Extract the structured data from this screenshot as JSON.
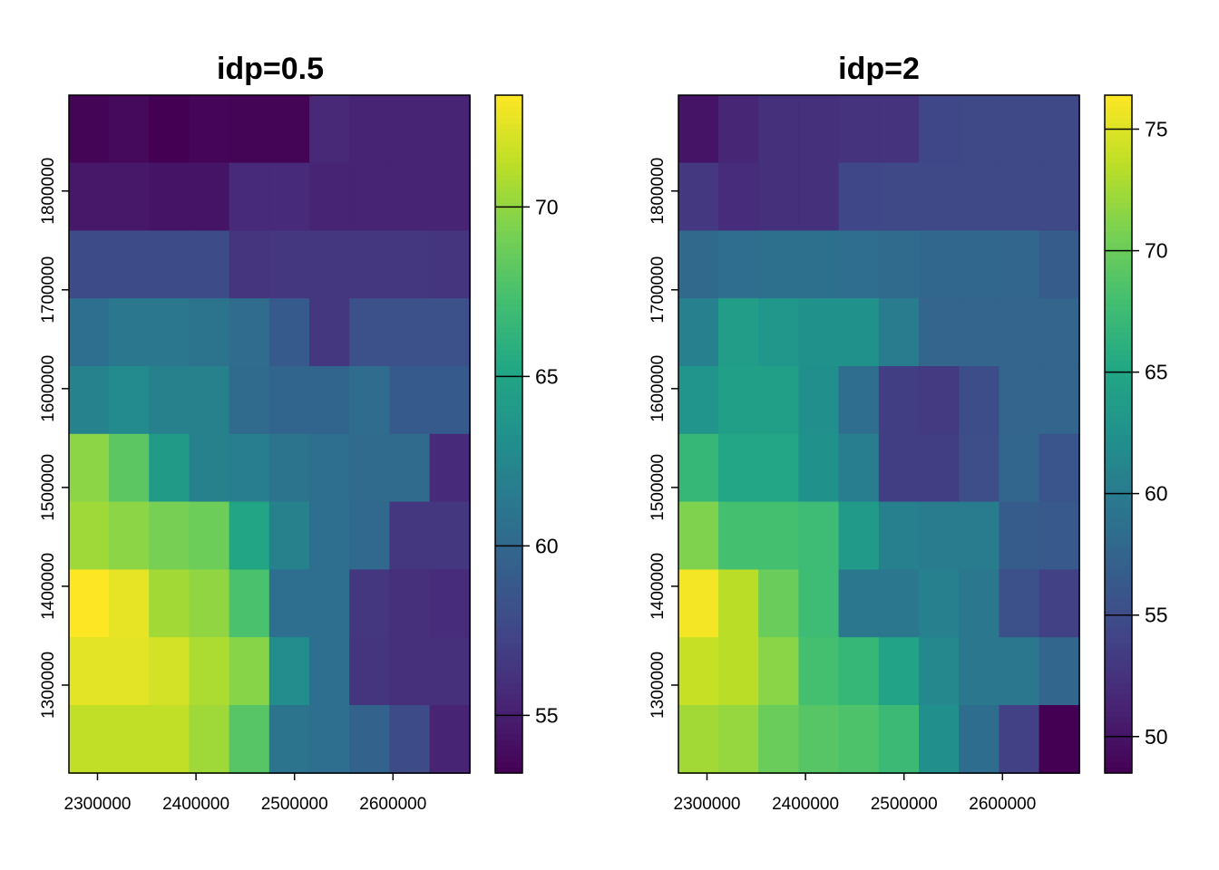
{
  "chart_data": [
    {
      "type": "heatmap",
      "title": "idp=0.5",
      "xlabel": "",
      "ylabel": "",
      "x_ticks": [
        2300000,
        2400000,
        2500000,
        2600000
      ],
      "x_tick_labels": [
        "2300000",
        "2400000",
        "2500000",
        "2600000"
      ],
      "y_ticks": [
        1300000,
        1400000,
        1500000,
        1600000,
        1700000,
        1800000
      ],
      "y_tick_labels": [
        "1300000",
        "1400000",
        "1500000",
        "1600000",
        "1700000",
        "1800000"
      ],
      "xlim": [
        2271000,
        2678000
      ],
      "ylim": [
        1211000,
        1897000
      ],
      "grid": {
        "x0": 2271000,
        "dx": 40700,
        "ncols": 10,
        "ytop": 1897000,
        "dy": 68600,
        "nrows": 10
      },
      "values": [
        [
          53.5,
          53.8,
          53.3,
          53.6,
          53.5,
          53.5,
          55.6,
          55.3,
          55.3,
          55.3
        ],
        [
          54.6,
          54.6,
          54.4,
          54.4,
          55.7,
          55.7,
          55.3,
          55.3,
          55.3,
          55.3
        ],
        [
          57.8,
          57.8,
          57.8,
          57.8,
          56.3,
          56.5,
          56.5,
          56.5,
          56.5,
          56.3
        ],
        [
          60.5,
          61.2,
          61.2,
          61.0,
          60.3,
          58.9,
          56.5,
          58.2,
          58.2,
          58.2
        ],
        [
          62.2,
          62.8,
          62.0,
          62.0,
          60.2,
          59.8,
          59.8,
          60.3,
          58.9,
          58.9
        ],
        [
          69.8,
          68.2,
          64.2,
          62.0,
          61.8,
          61.0,
          60.5,
          60.2,
          60.2,
          55.7
        ],
        [
          70.4,
          69.8,
          69.2,
          68.8,
          65.0,
          62.0,
          60.5,
          60.0,
          56.5,
          56.5
        ],
        [
          73.3,
          72.6,
          70.5,
          70.0,
          67.5,
          60.5,
          60.5,
          56.5,
          56.0,
          55.8
        ],
        [
          72.5,
          72.5,
          72.0,
          70.8,
          69.7,
          63.0,
          60.5,
          56.3,
          56.0,
          56.0
        ],
        [
          71.4,
          71.4,
          71.4,
          70.4,
          68.0,
          60.9,
          60.5,
          59.6,
          57.8,
          55.3
        ]
      ],
      "colorbar": {
        "min": 53.3,
        "max": 73.3,
        "ticks": [
          55,
          60,
          65,
          70
        ],
        "tick_labels": [
          "55",
          "60",
          "65",
          "70"
        ]
      }
    },
    {
      "type": "heatmap",
      "title": "idp=2",
      "xlabel": "",
      "ylabel": "",
      "x_ticks": [
        2300000,
        2400000,
        2500000,
        2600000
      ],
      "x_tick_labels": [
        "2300000",
        "2400000",
        "2500000",
        "2600000"
      ],
      "y_ticks": [
        1300000,
        1400000,
        1500000,
        1600000,
        1700000,
        1800000
      ],
      "y_tick_labels": [
        "1300000",
        "1400000",
        "1500000",
        "1600000",
        "1700000",
        "1800000"
      ],
      "xlim": [
        2271000,
        2678000
      ],
      "ylim": [
        1211000,
        1897000
      ],
      "grid": {
        "x0": 2271000,
        "dx": 40700,
        "ncols": 10,
        "ytop": 1897000,
        "dy": 68600,
        "nrows": 10
      },
      "values": [
        [
          50.0,
          51.5,
          52.3,
          52.3,
          52.6,
          52.6,
          54.4,
          54.6,
          54.6,
          54.6
        ],
        [
          53.0,
          52.0,
          52.3,
          52.3,
          54.4,
          54.6,
          54.6,
          54.6,
          54.6,
          54.6
        ],
        [
          58.0,
          58.5,
          58.8,
          58.8,
          58.5,
          58.1,
          57.8,
          57.8,
          57.6,
          56.6
        ],
        [
          60.5,
          64.0,
          63.0,
          62.5,
          62.5,
          60.0,
          57.5,
          57.5,
          57.5,
          57.5
        ],
        [
          62.8,
          64.3,
          64.3,
          62.3,
          58.5,
          53.6,
          53.2,
          55.0,
          57.5,
          57.5
        ],
        [
          67.0,
          65.0,
          65.0,
          62.5,
          60.3,
          53.6,
          53.6,
          55.1,
          57.6,
          55.8
        ],
        [
          71.0,
          68.0,
          68.0,
          67.5,
          63.5,
          60.5,
          60.0,
          60.0,
          56.6,
          56.3
        ],
        [
          76.0,
          73.5,
          70.0,
          67.5,
          59.5,
          59.5,
          60.5,
          59.5,
          55.3,
          53.8
        ],
        [
          74.0,
          73.5,
          71.5,
          68.0,
          67.0,
          64.5,
          61.5,
          59.5,
          59.5,
          57.6
        ],
        [
          72.5,
          72.0,
          70.0,
          69.0,
          68.5,
          67.3,
          62.3,
          58.4,
          53.8,
          48.5
        ]
      ],
      "colorbar": {
        "min": 48.5,
        "max": 76.4,
        "ticks": [
          50,
          55,
          60,
          65,
          70,
          75
        ],
        "tick_labels": [
          "50",
          "55",
          "60",
          "65",
          "70",
          "75"
        ]
      }
    }
  ]
}
